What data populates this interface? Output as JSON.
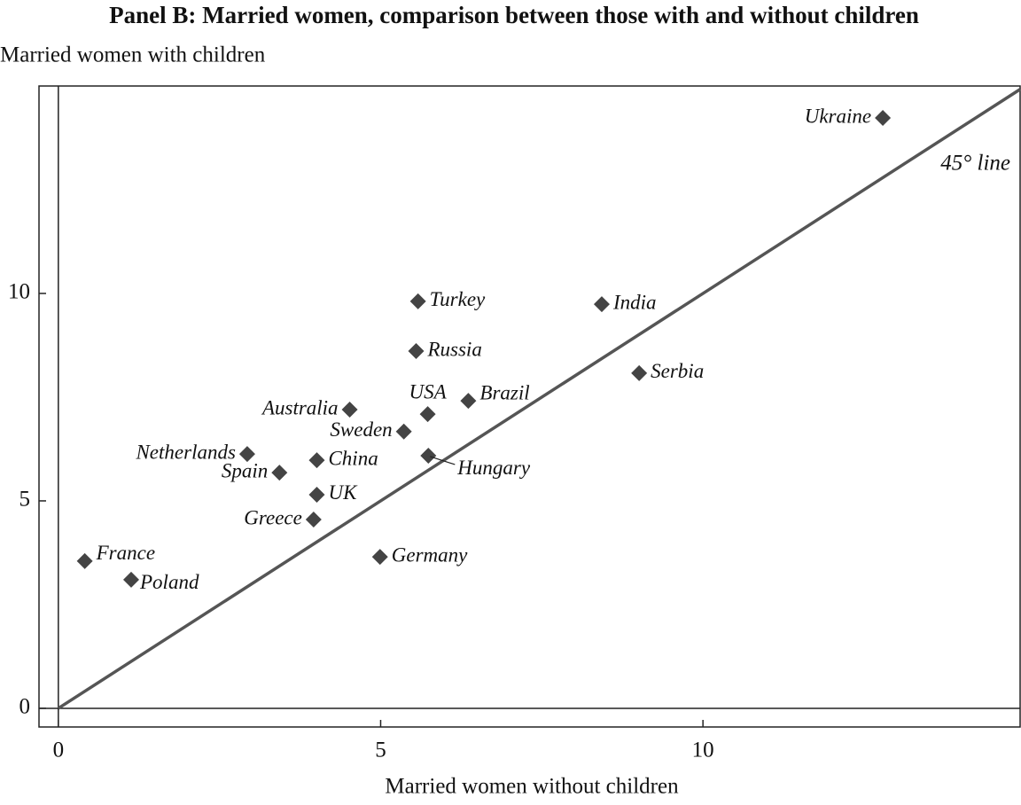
{
  "chart_data": {
    "type": "scatter",
    "title": "Panel B: Married women, comparison between those with and without children",
    "y_label": "Married women with children",
    "x_label": "Married women without children",
    "annotation": "45° line",
    "color": "#444444",
    "labels": [
      "Ukraine",
      "Turkey",
      "India",
      "Russia",
      "Serbia",
      "Brazil",
      "Australia",
      "USA",
      "Sweden",
      "Netherlands",
      "China",
      "Hungary",
      "Spain",
      "UK",
      "Greece",
      "France",
      "Germany",
      "Poland"
    ],
    "x": [
      12.79,
      5.58,
      8.43,
      5.55,
      9.01,
      6.36,
      4.52,
      5.73,
      5.36,
      2.93,
      4.01,
      5.74,
      3.43,
      4.01,
      3.96,
      0.41,
      4.99,
      1.13
    ],
    "values": [
      14.23,
      9.81,
      9.74,
      8.61,
      8.08,
      7.41,
      7.2,
      7.09,
      6.67,
      6.13,
      5.98,
      6.09,
      5.68,
      5.15,
      4.55,
      3.55,
      3.65,
      3.1
    ],
    "xlim": [
      -0.3,
      14.92
    ],
    "ylim": [
      -0.45,
      15.0
    ],
    "xticks": [
      0,
      5,
      10
    ],
    "yticks": [
      0,
      5,
      10
    ]
  }
}
